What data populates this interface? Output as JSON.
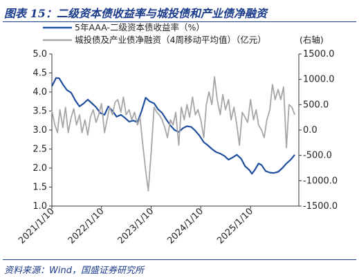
{
  "title": "图表 15：二级资本债收益率与城投债和产业债净融资",
  "source": "资料来源：Wind，国盛证券研究所",
  "chart_data": {
    "type": "line",
    "legend_placement": "top-left",
    "left_axis": {
      "ylim": [
        1.0,
        5.0
      ],
      "ticks": [
        "5.0",
        "4.5",
        "4.0",
        "3.5",
        "3.0",
        "2.5",
        "2.0",
        "1.5",
        "1.0"
      ]
    },
    "right_axis": {
      "label": "(右轴)",
      "ylim": [
        -1500,
        1500
      ],
      "ticks": [
        "1500.0",
        "1000.0",
        "500.0",
        "0.0",
        "-500.0",
        "-1000.0",
        "-1500.0"
      ]
    },
    "x_axis": {
      "range": [
        "2021-01-10",
        "2025-12-31"
      ],
      "ticks": [
        "2021/1/10",
        "2022/1/10",
        "2023/1/10",
        "2024/1/10",
        "2025/1/10"
      ]
    },
    "grid": false,
    "series": [
      {
        "name": "5年AAA-二级资本债收益率（%）",
        "axis": "left",
        "color": "#1f4e9e",
        "points": [
          [
            "2021-01-10",
            4.15
          ],
          [
            "2021-02-10",
            4.37
          ],
          [
            "2021-03-05",
            4.36
          ],
          [
            "2021-04-01",
            4.2
          ],
          [
            "2021-05-01",
            4.05
          ],
          [
            "2021-06-01",
            3.98
          ],
          [
            "2021-07-01",
            3.78
          ],
          [
            "2021-08-01",
            3.62
          ],
          [
            "2021-09-01",
            3.7
          ],
          [
            "2021-10-01",
            3.8
          ],
          [
            "2021-11-01",
            3.7
          ],
          [
            "2021-12-01",
            3.6
          ],
          [
            "2022-01-01",
            3.45
          ],
          [
            "2022-02-01",
            3.4
          ],
          [
            "2022-03-01",
            3.62
          ],
          [
            "2022-04-01",
            3.5
          ],
          [
            "2022-05-01",
            3.35
          ],
          [
            "2022-06-01",
            3.4
          ],
          [
            "2022-07-01",
            3.32
          ],
          [
            "2022-08-01",
            3.22
          ],
          [
            "2022-09-01",
            3.25
          ],
          [
            "2022-10-01",
            3.2
          ],
          [
            "2022-11-01",
            3.5
          ],
          [
            "2022-12-01",
            3.85
          ],
          [
            "2023-01-01",
            3.75
          ],
          [
            "2023-02-01",
            3.7
          ],
          [
            "2023-03-01",
            3.55
          ],
          [
            "2023-04-01",
            3.45
          ],
          [
            "2023-05-01",
            3.28
          ],
          [
            "2023-06-01",
            3.12
          ],
          [
            "2023-07-01",
            3.0
          ],
          [
            "2023-08-01",
            2.95
          ],
          [
            "2023-09-01",
            3.05
          ],
          [
            "2023-10-01",
            3.1
          ],
          [
            "2023-11-01",
            3.08
          ],
          [
            "2023-12-01",
            2.98
          ],
          [
            "2024-01-01",
            2.85
          ],
          [
            "2024-02-01",
            2.68
          ],
          [
            "2024-03-01",
            2.6
          ],
          [
            "2024-04-01",
            2.5
          ],
          [
            "2024-05-01",
            2.42
          ],
          [
            "2024-06-01",
            2.38
          ],
          [
            "2024-07-01",
            2.32
          ],
          [
            "2024-08-01",
            2.22
          ],
          [
            "2024-09-01",
            2.28
          ],
          [
            "2024-10-01",
            2.35
          ],
          [
            "2024-11-01",
            2.25
          ],
          [
            "2024-12-01",
            2.05
          ],
          [
            "2025-01-01",
            1.95
          ],
          [
            "2025-01-20",
            1.85
          ],
          [
            "2025-02-10",
            1.95
          ],
          [
            "2025-03-10",
            2.12
          ],
          [
            "2025-04-01",
            2.08
          ],
          [
            "2025-05-01",
            1.92
          ],
          [
            "2025-06-01",
            1.88
          ],
          [
            "2025-07-01",
            1.87
          ],
          [
            "2025-08-01",
            1.9
          ],
          [
            "2025-09-01",
            2.0
          ],
          [
            "2025-10-01",
            2.12
          ],
          [
            "2025-11-01",
            2.22
          ],
          [
            "2025-12-01",
            2.35
          ]
        ]
      },
      {
        "name": "城投债及产业债净融资（4周移动平均值）（亿元）",
        "axis": "right",
        "color": "#a6a6a6",
        "points": [
          [
            "2021-01-10",
            380
          ],
          [
            "2021-02-01",
            100
          ],
          [
            "2021-02-20",
            -50
          ],
          [
            "2021-03-10",
            400
          ],
          [
            "2021-04-01",
            50
          ],
          [
            "2021-04-20",
            450
          ],
          [
            "2021-05-10",
            -50
          ],
          [
            "2021-06-01",
            250
          ],
          [
            "2021-06-20",
            420
          ],
          [
            "2021-07-10",
            100
          ],
          [
            "2021-08-01",
            300
          ],
          [
            "2021-08-20",
            -50
          ],
          [
            "2021-09-10",
            200
          ],
          [
            "2021-10-01",
            -100
          ],
          [
            "2021-10-20",
            250
          ],
          [
            "2021-11-10",
            400
          ],
          [
            "2021-12-01",
            150
          ],
          [
            "2021-12-20",
            300
          ],
          [
            "2022-01-10",
            520
          ],
          [
            "2022-02-01",
            -50
          ],
          [
            "2022-02-20",
            200
          ],
          [
            "2022-03-10",
            450
          ],
          [
            "2022-04-01",
            300
          ],
          [
            "2022-04-20",
            550
          ],
          [
            "2022-05-10",
            600
          ],
          [
            "2022-06-01",
            350
          ],
          [
            "2022-06-20",
            650
          ],
          [
            "2022-07-10",
            300
          ],
          [
            "2022-08-01",
            400
          ],
          [
            "2022-08-20",
            200
          ],
          [
            "2022-09-10",
            350
          ],
          [
            "2022-10-01",
            100
          ],
          [
            "2022-10-20",
            250
          ],
          [
            "2022-11-10",
            -300
          ],
          [
            "2022-12-01",
            -800
          ],
          [
            "2022-12-20",
            -1200
          ],
          [
            "2023-01-10",
            -450
          ],
          [
            "2023-02-01",
            450
          ],
          [
            "2023-02-20",
            350
          ],
          [
            "2023-03-10",
            300
          ],
          [
            "2023-04-01",
            200
          ],
          [
            "2023-04-20",
            50
          ],
          [
            "2023-05-10",
            -150
          ],
          [
            "2023-06-01",
            200
          ],
          [
            "2023-06-20",
            100
          ],
          [
            "2023-07-10",
            350
          ],
          [
            "2023-08-01",
            -300
          ],
          [
            "2023-08-20",
            450
          ],
          [
            "2023-09-10",
            200
          ],
          [
            "2023-10-01",
            500
          ],
          [
            "2023-10-20",
            250
          ],
          [
            "2023-11-10",
            650
          ],
          [
            "2023-12-01",
            300
          ],
          [
            "2023-12-20",
            400
          ],
          [
            "2024-01-10",
            200
          ],
          [
            "2024-02-01",
            -150
          ],
          [
            "2024-02-20",
            500
          ],
          [
            "2024-03-10",
            750
          ],
          [
            "2024-04-01",
            500
          ],
          [
            "2024-04-20",
            1050
          ],
          [
            "2024-05-10",
            600
          ],
          [
            "2024-06-01",
            300
          ],
          [
            "2024-06-20",
            700
          ],
          [
            "2024-07-10",
            400
          ],
          [
            "2024-08-01",
            600
          ],
          [
            "2024-08-20",
            200
          ],
          [
            "2024-09-10",
            450
          ],
          [
            "2024-10-01",
            100
          ],
          [
            "2024-10-20",
            -300
          ],
          [
            "2024-11-10",
            350
          ],
          [
            "2024-12-01",
            250
          ],
          [
            "2024-12-20",
            150
          ],
          [
            "2025-01-10",
            600
          ],
          [
            "2025-02-01",
            200
          ],
          [
            "2025-02-20",
            400
          ],
          [
            "2025-03-10",
            100
          ],
          [
            "2025-04-01",
            0
          ],
          [
            "2025-04-20",
            -150
          ],
          [
            "2025-05-10",
            200
          ],
          [
            "2025-06-01",
            400
          ],
          [
            "2025-06-20",
            900
          ],
          [
            "2025-07-10",
            600
          ],
          [
            "2025-08-01",
            800
          ],
          [
            "2025-08-20",
            600
          ],
          [
            "2025-09-10",
            850
          ],
          [
            "2025-10-01",
            -350
          ],
          [
            "2025-10-20",
            500
          ],
          [
            "2025-11-10",
            450
          ],
          [
            "2025-12-01",
            300
          ]
        ]
      }
    ]
  }
}
